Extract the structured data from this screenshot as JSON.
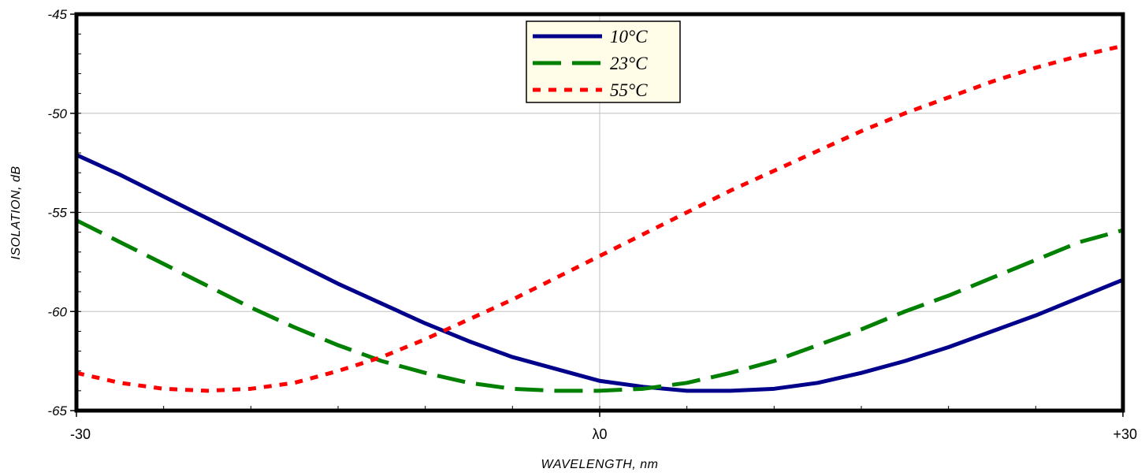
{
  "chart_data": {
    "type": "line",
    "title": "",
    "xlabel": "WAVELENGTH, nm",
    "ylabel": "ISOLATION, dB",
    "xlim": [
      -30,
      30
    ],
    "ylim": [
      -65,
      -45
    ],
    "x_ticks": [
      {
        "value": -30,
        "label": "-30"
      },
      {
        "value": 0,
        "label": "λ0"
      },
      {
        "value": 30,
        "label": "+30"
      }
    ],
    "y_ticks": [
      {
        "value": -45,
        "label": "-45"
      },
      {
        "value": -50,
        "label": "-50"
      },
      {
        "value": -55,
        "label": "-55"
      },
      {
        "value": -60,
        "label": "-60"
      },
      {
        "value": -65,
        "label": "-65"
      }
    ],
    "grid": true,
    "legend_position": "top-center",
    "series": [
      {
        "name": "10°C",
        "color": "#00008B",
        "dash": "solid",
        "x": [
          -30,
          -27.5,
          -25,
          -22.5,
          -20,
          -17.5,
          -15,
          -12.5,
          -10,
          -7.5,
          -5,
          -2.5,
          0,
          2.5,
          5,
          7.5,
          10,
          12.5,
          15,
          17.5,
          20,
          22.5,
          25,
          27.5,
          30
        ],
        "y": [
          -52.1,
          -53.1,
          -54.2,
          -55.3,
          -56.4,
          -57.5,
          -58.6,
          -59.6,
          -60.6,
          -61.5,
          -62.3,
          -62.9,
          -63.5,
          -63.8,
          -64.0,
          -64.0,
          -63.9,
          -63.6,
          -63.1,
          -62.5,
          -61.8,
          -61.0,
          -60.2,
          -59.3,
          -58.4
        ]
      },
      {
        "name": "23°C",
        "color": "#008000",
        "dash": "long-dash",
        "x": [
          -30,
          -27.5,
          -25,
          -22.5,
          -20,
          -17.5,
          -15,
          -12.5,
          -10,
          -7.5,
          -5,
          -2.5,
          0,
          2.5,
          5,
          7.5,
          10,
          12.5,
          15,
          17.5,
          20,
          22.5,
          25,
          27.5,
          30
        ],
        "y": [
          -55.4,
          -56.5,
          -57.6,
          -58.7,
          -59.8,
          -60.8,
          -61.7,
          -62.5,
          -63.1,
          -63.6,
          -63.9,
          -64.0,
          -64.0,
          -63.9,
          -63.6,
          -63.1,
          -62.5,
          -61.7,
          -60.9,
          -60.0,
          -59.2,
          -58.3,
          -57.4,
          -56.5,
          -55.9
        ]
      },
      {
        "name": "55°C",
        "color": "#FF0000",
        "dash": "dot",
        "x": [
          -30,
          -27.5,
          -25,
          -22.5,
          -20,
          -17.5,
          -15,
          -12.5,
          -10,
          -7.5,
          -5,
          -2.5,
          0,
          2.5,
          5,
          7.5,
          10,
          12.5,
          15,
          17.5,
          20,
          22.5,
          25,
          27.5,
          30
        ],
        "y": [
          -63.1,
          -63.6,
          -63.9,
          -64.0,
          -63.9,
          -63.6,
          -63.0,
          -62.3,
          -61.4,
          -60.4,
          -59.4,
          -58.3,
          -57.2,
          -56.1,
          -55.0,
          -53.9,
          -52.9,
          -51.9,
          -50.9,
          -50.0,
          -49.2,
          -48.4,
          -47.7,
          -47.1,
          -46.6
        ]
      }
    ]
  }
}
